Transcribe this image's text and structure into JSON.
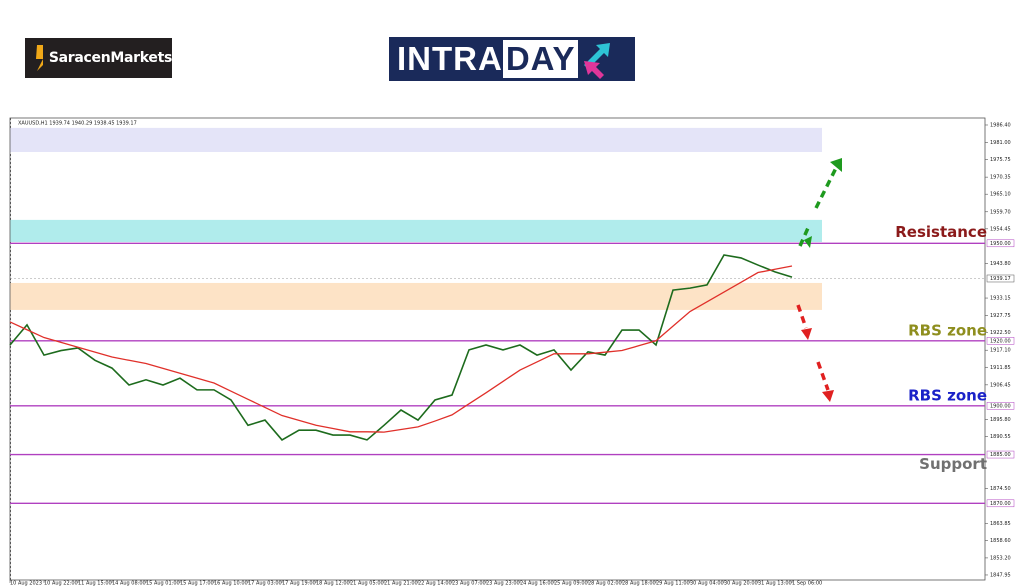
{
  "header": {
    "brand": "SaracenMarkets",
    "title_start": "INTRA",
    "title_end": "DAY"
  },
  "chart_data": {
    "type": "line",
    "symbol_info": "XAUUSD,H1 1939.74 1940.29 1938.45 1939.17",
    "categories": [
      "10 Aug 2023",
      null,
      "10 Aug 22:00",
      null,
      "11 Aug 15:00",
      null,
      "14 Aug 08:00",
      null,
      "15 Aug 01:00",
      null,
      "15 Aug 17:00",
      null,
      "16 Aug 10:00",
      null,
      "17 Aug 03:00",
      null,
      "17 Aug 19:00",
      null,
      "18 Aug 12:00",
      null,
      "21 Aug 05:00",
      null,
      "21 Aug 21:00",
      null,
      "22 Aug 14:00",
      null,
      "23 Aug 07:00",
      null,
      "23 Aug 23:00",
      null,
      "24 Aug 16:00",
      null,
      "25 Aug 09:00",
      null,
      "28 Aug 02:00",
      null,
      "28 Aug 18:00",
      null,
      "29 Aug 11:00",
      null,
      "30 Aug 04:00",
      null,
      "30 Aug 20:00",
      null,
      "31 Aug 13:00",
      null,
      "1 Sep 06:00"
    ],
    "series": [
      {
        "color": "#1d6b1d",
        "values": [
          1918.7,
          1924.9,
          1915.6,
          1917,
          1917.8,
          1914,
          1911.6,
          1906.4,
          1908,
          1906.4,
          1908.5,
          1904.9,
          1904.9,
          1901.8,
          1894,
          1895.6,
          1889.5,
          1892.5,
          1892.5,
          1891,
          1891,
          1889.5,
          1894,
          1898.7,
          1895.6,
          1901.8,
          1903.3,
          1917.2,
          1918.7,
          1917.2,
          1918.7,
          1915.6,
          1917.2,
          1911,
          1916.6,
          1915.6,
          1923.3,
          1923.3,
          1918.7,
          1935.6,
          1936.2,
          1937.2,
          1946.4,
          1945.5,
          1943.3,
          1941.2,
          1939.6
        ]
      },
      {
        "color": "#e0302a",
        "values": [
          1925.8,
          1923.4,
          1921,
          1919.5,
          1918,
          1916.5,
          1915,
          1914,
          1913,
          1911.5,
          1910,
          1908.5,
          1907,
          1904.5,
          1902,
          1899.5,
          1897,
          1895.5,
          1894,
          1893,
          1892,
          1892,
          1891.9,
          1892.7,
          1893.5,
          1895.3,
          1897.2,
          1900.6,
          1904,
          1907.5,
          1911,
          1913.5,
          1916,
          1916,
          1916,
          1916.5,
          1917,
          1918.5,
          1920,
          1924.5,
          1929,
          1932,
          1935,
          1938,
          1941,
          1942,
          1943
        ]
      }
    ],
    "ylim": [
      1846.4,
      1988.55
    ],
    "yticks": [
      {
        "value": 1986.4,
        "label": "1986.40"
      },
      {
        "value": 1981,
        "label": "1981.00"
      },
      {
        "value": 1975.75,
        "label": "1975.75"
      },
      {
        "value": 1970.35,
        "label": "1970.35"
      },
      {
        "value": 1965.1,
        "label": "1965.10"
      },
      {
        "value": 1959.7,
        "label": "1959.70"
      },
      {
        "value": 1954.45,
        "label": "1954.45"
      },
      {
        "value": 1943.8,
        "label": "1943.80"
      },
      {
        "value": 1933.15,
        "label": "1933.15"
      },
      {
        "value": 1927.75,
        "label": "1927.75"
      },
      {
        "value": 1922.5,
        "label": "1922.50"
      },
      {
        "value": 1917.1,
        "label": "1917.10"
      },
      {
        "value": 1911.85,
        "label": "1911.85"
      },
      {
        "value": 1906.45,
        "label": "1906.45"
      },
      {
        "value": 1895.8,
        "label": "1895.80"
      },
      {
        "value": 1890.55,
        "label": "1890.55"
      },
      {
        "value": 1874.5,
        "label": "1874.50"
      },
      {
        "value": 1863.85,
        "label": "1863.85"
      },
      {
        "value": 1858.6,
        "label": "1858.60"
      },
      {
        "value": 1853.2,
        "label": "1853.20"
      },
      {
        "value": 1847.95,
        "label": "1847.95"
      }
    ],
    "current_price": {
      "value": 1939.17,
      "label": "1939.17"
    },
    "zones": [
      {
        "from": 1978.1,
        "to": 1985.5,
        "color": "#e4e4f8"
      },
      {
        "from": 1950.4,
        "to": 1957.2,
        "color": "#b0ecec"
      },
      {
        "from": 1929.5,
        "to": 1937.8,
        "color": "#fde3c6"
      }
    ],
    "levels": [
      {
        "value": 1950,
        "label": "1950.00",
        "annotation": "Resistance",
        "annotation_color": "#8b1a1a"
      },
      {
        "value": 1920,
        "label": "1920.00",
        "annotation": "RBS zone",
        "annotation_color": "#8e8e1e"
      },
      {
        "value": 1900,
        "label": "1900.00",
        "annotation": "RBS zone",
        "annotation_color": "#1a22c8"
      },
      {
        "value": 1885,
        "label": "1885.00",
        "annotation": "Support",
        "annotation_color": "#707070"
      },
      {
        "value": 1870,
        "label": "1870.00"
      }
    ],
    "level_color": "#b040c0"
  }
}
